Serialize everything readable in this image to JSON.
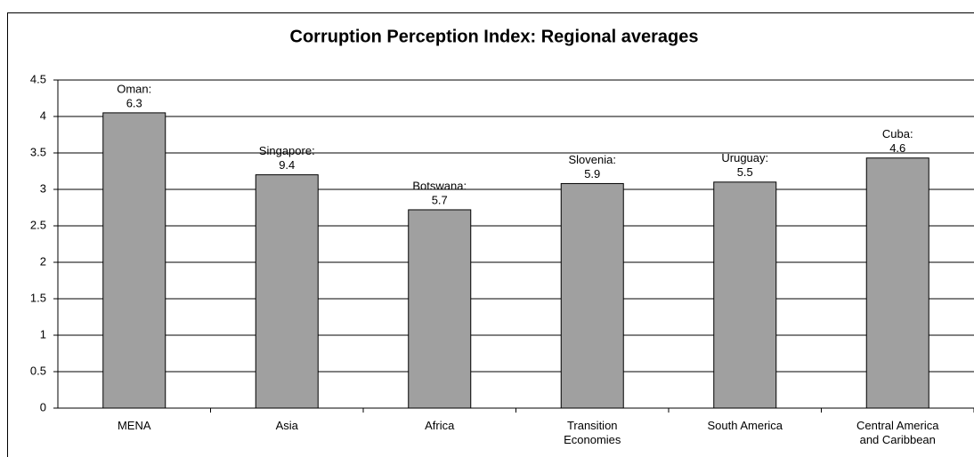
{
  "chart_data": {
    "type": "bar",
    "title": "Corruption Perception Index: Regional averages",
    "categories": [
      "MENA",
      "Asia",
      "Africa",
      "Transition Economies",
      "South America",
      "Central America and Caribbean"
    ],
    "values": [
      4.05,
      3.2,
      2.72,
      3.08,
      3.1,
      3.43
    ],
    "annotations": [
      [
        "Oman:",
        "6.3"
      ],
      [
        "Singapore:",
        "9.4"
      ],
      [
        "Botswana:",
        "5.7"
      ],
      [
        "Slovenia:",
        "5.9"
      ],
      [
        "Uruguay:",
        "5.5"
      ],
      [
        "Cuba:",
        "4.6"
      ]
    ],
    "color": "#a0a0a0",
    "ylim": [
      0,
      4.5
    ],
    "yticks": [
      0,
      0.5,
      1,
      1.5,
      2,
      2.5,
      3,
      3.5,
      4,
      4.5
    ],
    "grid": true
  }
}
